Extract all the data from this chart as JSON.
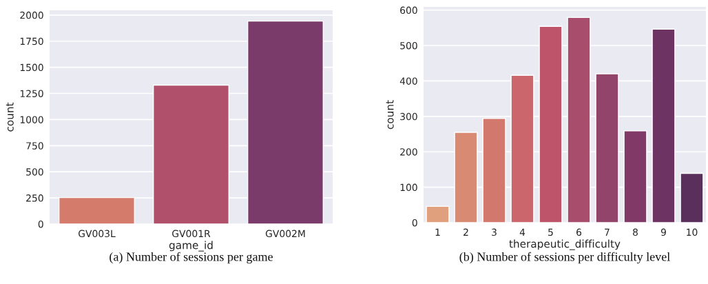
{
  "chart_data": [
    {
      "type": "bar",
      "xlabel": "game_id",
      "ylabel": "count",
      "categories": [
        "GV003L",
        "GV001R",
        "GV002M"
      ],
      "values": [
        253,
        1329,
        1942
      ],
      "colors": [
        "#d57b6b",
        "#b0506b",
        "#7a3a6a"
      ],
      "ylim": [
        0,
        2045
      ],
      "yticks": [
        0,
        250,
        500,
        750,
        1000,
        1250,
        1500,
        1750,
        2000
      ],
      "grid": "y",
      "annotations": [
        "(a) Number of sessions per game"
      ]
    },
    {
      "type": "bar",
      "xlabel": "therapeutic_difficulty",
      "ylabel": "count",
      "categories": [
        "1",
        "2",
        "3",
        "4",
        "5",
        "6",
        "7",
        "8",
        "9",
        "10"
      ],
      "values": [
        46,
        255,
        294,
        416,
        554,
        579,
        420,
        259,
        546,
        139
      ],
      "colors": [
        "#e0a07e",
        "#d98a72",
        "#d3786c",
        "#cb666c",
        "#bd546a",
        "#a84d6c",
        "#93446a",
        "#813a68",
        "#6d3363",
        "#5a2f5c"
      ],
      "ylim": [
        0,
        609
      ],
      "yticks": [
        0,
        100,
        200,
        300,
        400,
        500,
        600
      ],
      "grid": "y",
      "annotations": [
        "(b) Number of sessions per difficulty level"
      ]
    }
  ]
}
